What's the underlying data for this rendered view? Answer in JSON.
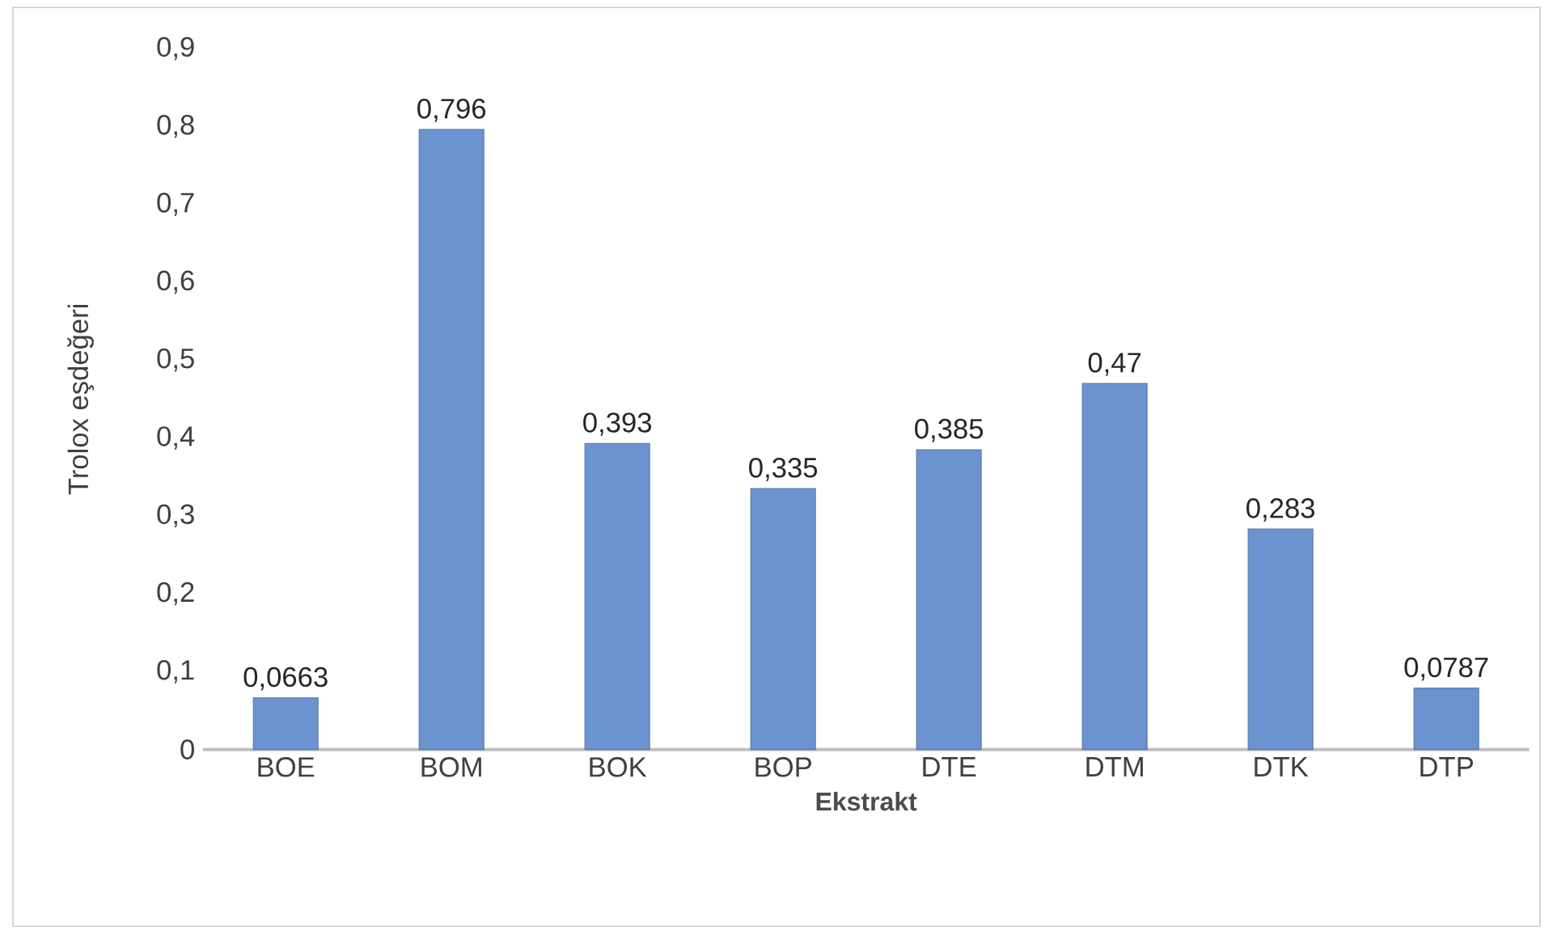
{
  "chart_data": {
    "type": "bar",
    "xlabel": "Ekstrakt",
    "ylabel": "Trolox eşdeğeri",
    "categories": [
      "BOE",
      "BOM",
      "BOK",
      "BOP",
      "DTE",
      "DTM",
      "DTK",
      "DTP"
    ],
    "values": [
      0.0663,
      0.796,
      0.393,
      0.335,
      0.385,
      0.47,
      0.283,
      0.0787
    ],
    "value_labels": [
      "0,0663",
      "0,796",
      "0,393",
      "0,335",
      "0,385",
      "0,47",
      "0,283",
      "0,0787"
    ],
    "color": "#6b93cf",
    "ylim": [
      0,
      0.9
    ],
    "yticks": [
      0,
      {
        "value": 0.1,
        "label": "0,1"
      },
      {
        "value": 0.2,
        "label": "0,2"
      },
      {
        "value": 0.3,
        "label": "0,3"
      },
      {
        "value": 0.4,
        "label": "0,4"
      },
      {
        "value": 0.5,
        "label": "0,5"
      },
      {
        "value": 0.6,
        "label": "0,6"
      },
      {
        "value": 0.7,
        "label": "0,7"
      },
      {
        "value": 0.8,
        "label": "0,8"
      },
      {
        "value": 0.9,
        "label": "0,9"
      }
    ],
    "grid": false
  }
}
